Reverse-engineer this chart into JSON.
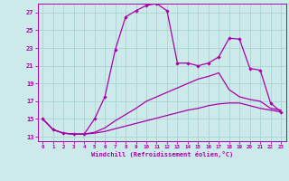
{
  "xlabel": "Windchill (Refroidissement éolien,°C)",
  "background_color": "#cceaea",
  "grid_color": "#aad4d4",
  "line_color": "#aa00aa",
  "xlim": [
    -0.5,
    23.5
  ],
  "ylim": [
    12.5,
    28.0
  ],
  "yticks": [
    13,
    15,
    17,
    19,
    21,
    23,
    25,
    27
  ],
  "xticks": [
    0,
    1,
    2,
    3,
    4,
    5,
    6,
    7,
    8,
    9,
    10,
    11,
    12,
    13,
    14,
    15,
    16,
    17,
    18,
    19,
    20,
    21,
    22,
    23
  ],
  "line1_x": [
    0,
    1,
    2,
    3,
    4,
    5,
    6,
    7,
    8,
    9,
    10,
    11,
    12,
    13,
    14,
    15,
    16,
    17,
    18,
    19,
    20,
    21,
    22,
    23
  ],
  "line1_y": [
    15.0,
    13.8,
    13.4,
    13.3,
    13.3,
    13.4,
    13.6,
    13.9,
    14.2,
    14.5,
    14.8,
    15.1,
    15.4,
    15.7,
    16.0,
    16.2,
    16.5,
    16.7,
    16.8,
    16.8,
    16.5,
    16.2,
    16.0,
    15.8
  ],
  "line2_x": [
    0,
    1,
    2,
    3,
    4,
    5,
    6,
    7,
    8,
    9,
    10,
    11,
    12,
    13,
    14,
    15,
    16,
    17,
    18,
    19,
    20,
    21,
    22,
    23
  ],
  "line2_y": [
    15.0,
    13.8,
    13.4,
    13.3,
    13.3,
    13.5,
    14.0,
    14.8,
    15.5,
    16.2,
    17.0,
    17.5,
    18.0,
    18.5,
    19.0,
    19.5,
    19.8,
    20.2,
    18.3,
    17.5,
    17.2,
    17.0,
    16.2,
    16.0
  ],
  "line3_x": [
    0,
    1,
    2,
    3,
    4,
    5,
    6,
    7,
    8,
    9,
    10,
    11,
    12,
    13,
    14,
    15,
    16,
    17,
    18,
    19,
    20,
    21,
    22,
    23
  ],
  "line3_y": [
    15.0,
    13.8,
    13.4,
    13.3,
    13.3,
    15.0,
    17.5,
    22.8,
    26.5,
    27.2,
    27.8,
    28.0,
    27.2,
    21.3,
    21.3,
    21.0,
    21.3,
    22.0,
    24.1,
    24.0,
    20.7,
    20.5,
    16.8,
    15.8
  ]
}
